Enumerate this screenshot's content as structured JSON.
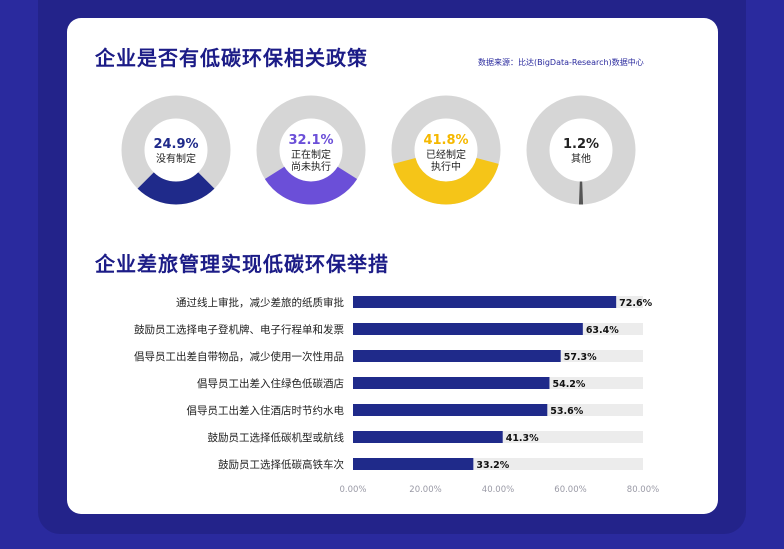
{
  "page": {
    "title1": "企业是否有低碳环保相关政策",
    "title2": "企业差旅管理实现低碳环保举措",
    "source": "数据来源：比达(BigData-Research)数据中心"
  },
  "chart_data": [
    {
      "type": "pie",
      "title": "企业是否有低碳环保相关政策",
      "slices": [
        {
          "label": "没有制定",
          "value": 24.9,
          "display": "24.9%",
          "color": "#1f2a8a"
        },
        {
          "label": "正在制定\n尚未执行",
          "value": 32.1,
          "display": "32.1%",
          "color": "#6b4fd8"
        },
        {
          "label": "已经制定\n执行中",
          "value": 41.8,
          "display": "41.8%",
          "color": "#f5c518"
        },
        {
          "label": "其他",
          "value": 1.2,
          "display": "1.2%",
          "color": "#555555"
        }
      ],
      "track_color": "#d6d6d6"
    },
    {
      "type": "bar",
      "orientation": "horizontal",
      "title": "企业差旅管理实现低碳环保举措",
      "categories": [
        "通过线上审批，减少差旅的纸质审批",
        "鼓励员工选择电子登机牌、电子行程单和发票",
        "倡导员工出差自带物品，减少使用一次性用品",
        "倡导员工出差入住绿色低碳酒店",
        "倡导员工出差入住酒店时节约水电",
        "鼓励员工选择低碳机型或航线",
        "鼓励员工选择低碳高铁车次"
      ],
      "values": [
        72.6,
        63.4,
        57.3,
        54.2,
        53.6,
        41.3,
        33.2
      ],
      "value_labels": [
        "72.6%",
        "63.4%",
        "57.3%",
        "54.2%",
        "53.6%",
        "41.3%",
        "33.2%"
      ],
      "xlim": [
        0,
        80
      ],
      "xticks": [
        "0.00%",
        "20.00%",
        "40.00%",
        "60.00%",
        "80.00%"
      ],
      "bar_color": "#1f2a8a",
      "track_color": "#ececec"
    }
  ]
}
